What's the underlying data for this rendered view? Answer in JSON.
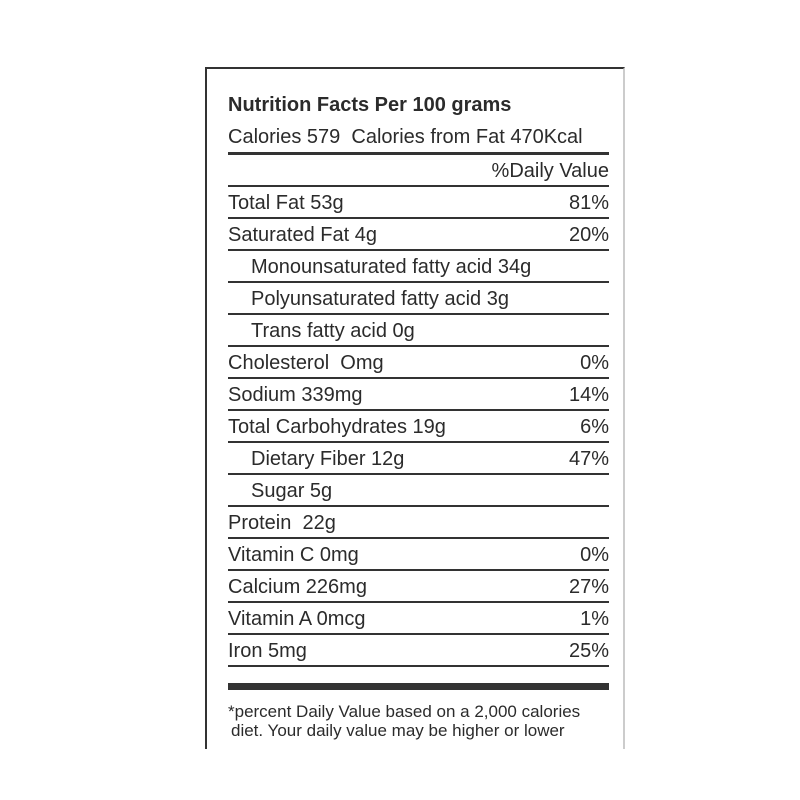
{
  "title": "Nutrition Facts Per 100 grams",
  "calories_line": "Calories 579  Calories from Fat 470Kcal",
  "dv_header": "%Daily Value",
  "rows": [
    {
      "label": "Total Fat 53g",
      "dv": "81%",
      "indent": false
    },
    {
      "label": "Saturated Fat 4g",
      "dv": "20%",
      "indent": false
    },
    {
      "label": "Monounsaturated fatty acid 34g",
      "dv": "",
      "indent": true
    },
    {
      "label": "Polyunsaturated fatty acid 3g",
      "dv": "",
      "indent": true
    },
    {
      "label": "Trans fatty acid 0g",
      "dv": "",
      "indent": true
    },
    {
      "label": "Cholesterol  Omg",
      "dv": "0%",
      "indent": false
    },
    {
      "label": "Sodium 339mg",
      "dv": "14%",
      "indent": false
    },
    {
      "label": "Total Carbohydrates 19g",
      "dv": "6%",
      "indent": false
    },
    {
      "label": "Dietary Fiber 12g",
      "dv": "47%",
      "indent": true
    },
    {
      "label": "Sugar 5g",
      "dv": "",
      "indent": true
    },
    {
      "label": "Protein  22g",
      "dv": "",
      "indent": false
    },
    {
      "label": "Vitamin C 0mg",
      "dv": "0%",
      "indent": false
    },
    {
      "label": "Calcium 226mg",
      "dv": "27%",
      "indent": false
    },
    {
      "label": "Vitamin A 0mcg",
      "dv": "1%",
      "indent": false
    },
    {
      "label": "Iron 5mg",
      "dv": "25%",
      "indent": false
    }
  ],
  "footnote": [
    "*percent Daily Value based on a 2,000 calories",
    "diet. Your daily value may be higher or lower"
  ]
}
